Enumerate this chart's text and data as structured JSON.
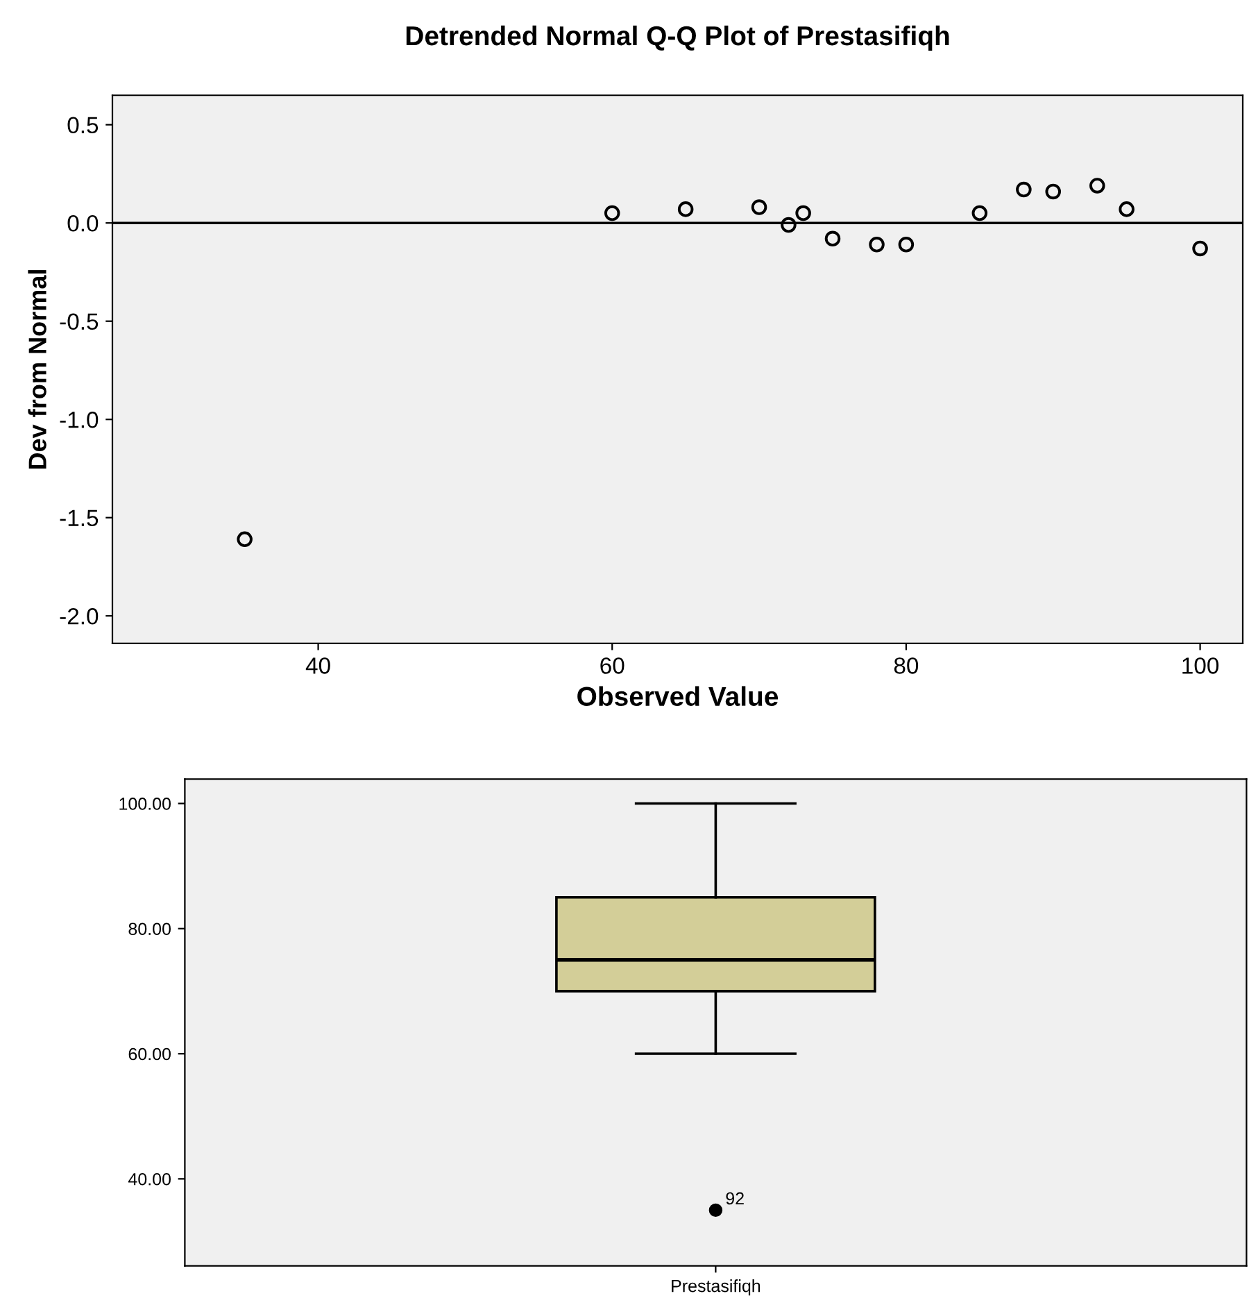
{
  "chart_data": [
    {
      "type": "scatter",
      "title": "Detrended Normal Q-Q Plot of Prestasifiqh",
      "xlabel": "Observed Value",
      "ylabel": "Dev from Normal",
      "x": [
        35,
        60,
        65,
        70,
        72,
        73,
        75,
        78,
        80,
        85,
        88,
        90,
        93,
        95,
        100
      ],
      "values": [
        -1.61,
        0.05,
        0.07,
        0.08,
        -0.01,
        0.05,
        -0.08,
        -0.11,
        -0.11,
        0.05,
        0.17,
        0.16,
        0.19,
        0.07,
        -0.13
      ],
      "color": "#000000",
      "marker": "circle",
      "xlim": [
        26,
        102.9
      ],
      "ylim": [
        -2.14,
        0.65
      ],
      "xticks": [
        40,
        60,
        80,
        100
      ],
      "yticks": [
        {
          "value": -2.0,
          "label": "-2.0"
        },
        {
          "value": -1.5,
          "label": "-1.5"
        },
        {
          "value": -1.0,
          "label": "-1.0"
        },
        {
          "value": -0.5,
          "label": "-0.5"
        },
        {
          "value": 0.0,
          "label": "0.0"
        },
        {
          "value": 0.5,
          "label": "0.5"
        }
      ],
      "ref_lines": [
        {
          "axis": "y",
          "value": 0,
          "color": "#000000"
        }
      ],
      "grid": false,
      "legend": false
    },
    {
      "type": "box",
      "categories": [
        "Prestasifiqh"
      ],
      "color": "#d3ce98",
      "boxes": [
        {
          "low": 60,
          "q1": 70,
          "median": 75,
          "q3": 85,
          "high": 100,
          "outliers": [
            35
          ]
        }
      ],
      "ylim": [
        26.1,
        103.9
      ],
      "yticks": [
        {
          "value": 40,
          "label": "40.00"
        },
        {
          "value": 60,
          "label": "60.00"
        },
        {
          "value": 80,
          "label": "80.00"
        },
        {
          "value": 100,
          "label": "100.00"
        }
      ],
      "annotations": [
        "92"
      ],
      "grid": false,
      "legend": false
    }
  ]
}
